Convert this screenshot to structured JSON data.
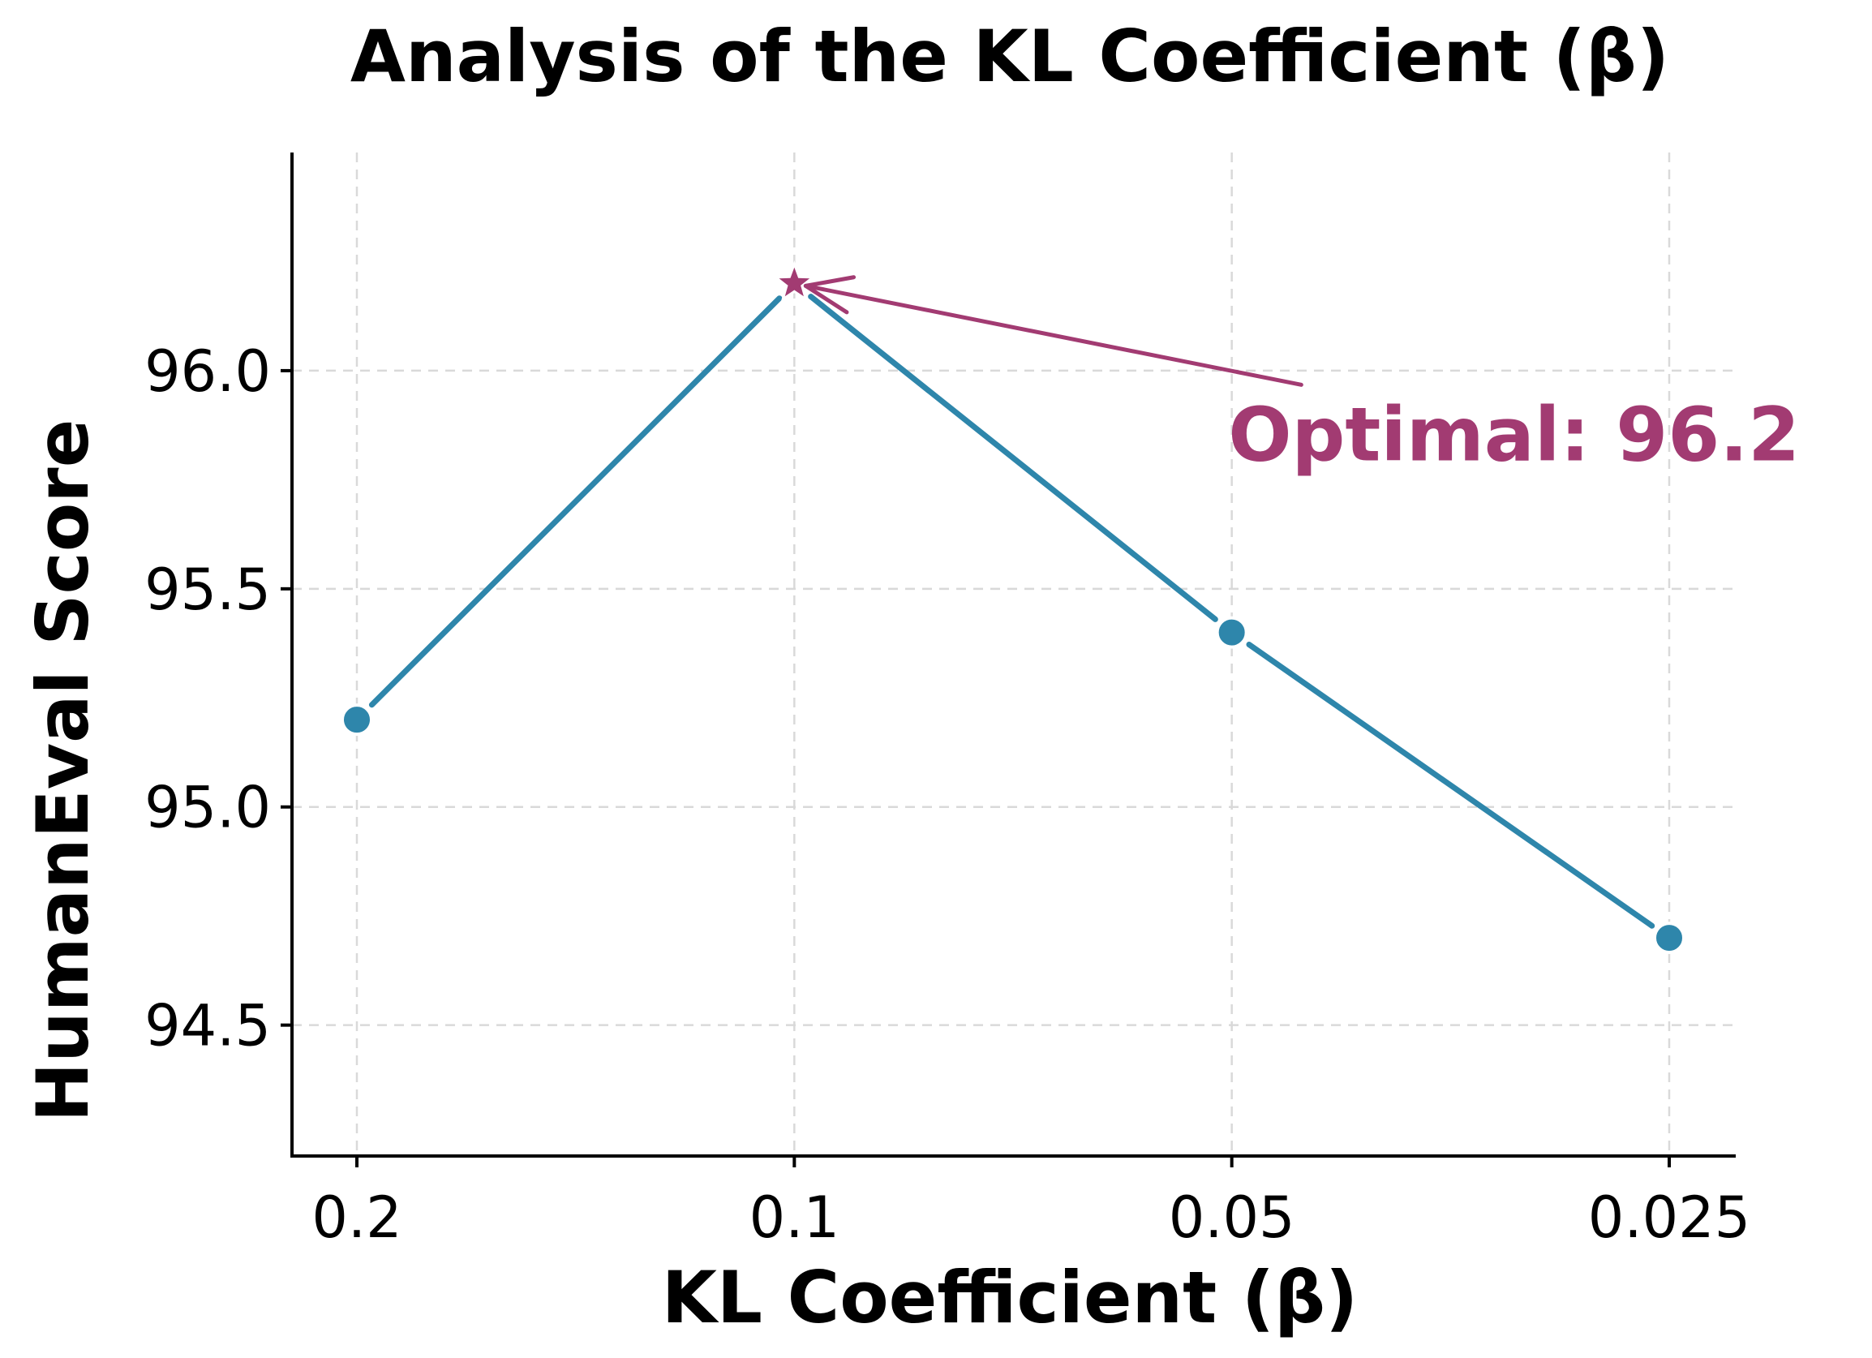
{
  "chart_data": {
    "type": "line",
    "title": "Analysis of the KL Coefficient (β)",
    "xlabel": "KL Coefficient (β)",
    "ylabel": "HumanEval Score",
    "categories": [
      "0.2",
      "0.1",
      "0.05",
      "0.025"
    ],
    "series": [
      {
        "name": "HumanEval Score",
        "values": [
          95.2,
          96.2,
          95.4,
          94.7
        ],
        "color": "#2e86ab"
      }
    ],
    "ylim": [
      94.2,
      96.5
    ],
    "yticks": [
      94.5,
      95.0,
      95.5,
      96.0
    ],
    "ytick_labels": [
      "94.5",
      "95.0",
      "95.5",
      "96.0"
    ],
    "grid": true,
    "highlight": {
      "category": "0.1",
      "value": 96.2,
      "marker": "star",
      "color": "#a23b72"
    },
    "annotation": {
      "text": "Optimal: 96.2",
      "color": "#a23b72",
      "points_to": {
        "category": "0.1",
        "value": 96.2
      }
    }
  }
}
